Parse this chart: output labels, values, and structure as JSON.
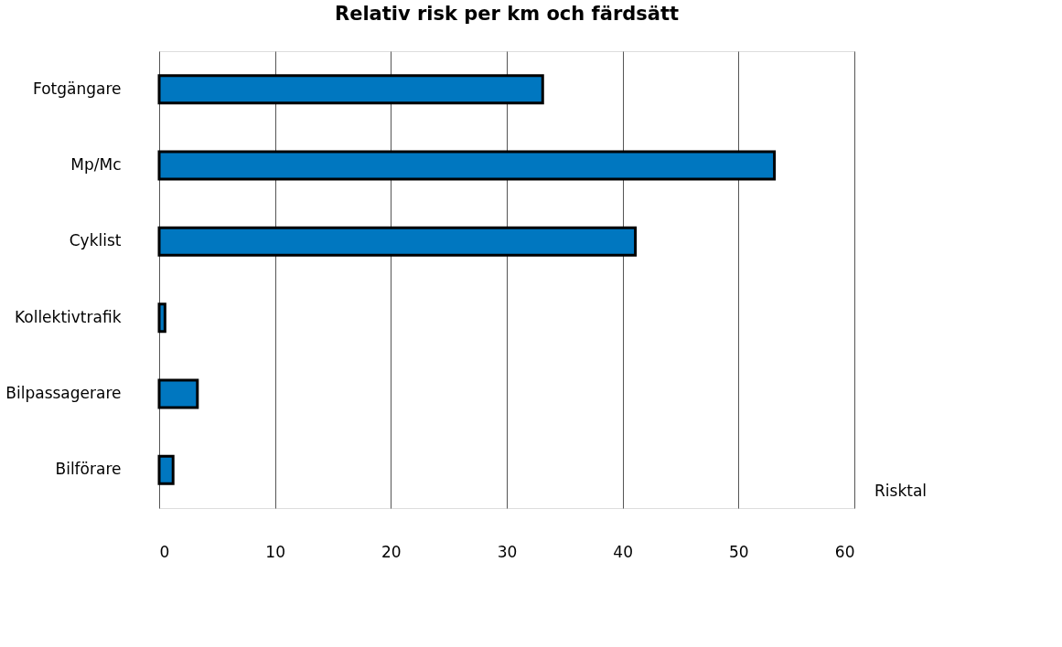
{
  "chart_data": {
    "type": "bar",
    "orientation": "horizontal",
    "title": "Relativ risk per km och färdsätt",
    "xlabel": "Risktal",
    "categories": [
      "Fotgängare",
      "Mp/Mc",
      "Cyklist",
      "Kollektivtrafik",
      "Bilpassagerare",
      "Bilförare"
    ],
    "values": [
      33.1,
      53.1,
      41.1,
      0.5,
      3.3,
      1.2
    ],
    "color": "#0077c0",
    "xlim": [
      0,
      60
    ],
    "xticks": [
      0,
      10,
      20,
      30,
      40,
      50,
      60
    ],
    "grid": "x"
  }
}
